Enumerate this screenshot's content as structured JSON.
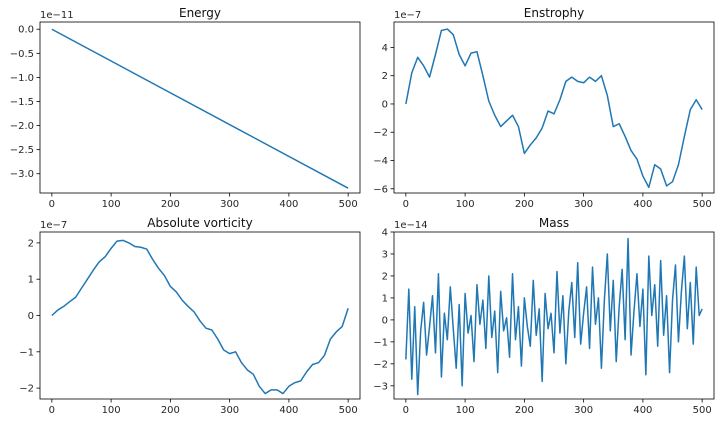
{
  "colors": {
    "line": "#1f77b4",
    "axes": "#000000",
    "background": "#ffffff"
  },
  "chart_data": [
    {
      "type": "line",
      "title": "Energy",
      "scale_label": "1e−11",
      "xlim": [
        -20,
        520
      ],
      "ylim": [
        -3.4,
        0.15
      ],
      "xticks": [
        0,
        100,
        200,
        300,
        400,
        500
      ],
      "yticks": [
        0.0,
        -0.5,
        -1.0,
        -1.5,
        -2.0,
        -2.5,
        -3.0
      ],
      "ytick_labels": [
        "0.0",
        "−0.5",
        "−1.0",
        "−1.5",
        "−2.0",
        "−2.5",
        "−3.0"
      ],
      "grid": false,
      "series": [
        {
          "x": [
            0,
            500
          ],
          "y": [
            0.0,
            -3.3
          ]
        }
      ]
    },
    {
      "type": "line",
      "title": "Enstrophy",
      "scale_label": "1e−7",
      "xlim": [
        -20,
        520
      ],
      "ylim": [
        -6.3,
        5.8
      ],
      "xticks": [
        0,
        100,
        200,
        300,
        400,
        500
      ],
      "yticks": [
        4,
        2,
        0,
        -2,
        -4,
        -6
      ],
      "ytick_labels": [
        "4",
        "2",
        "0",
        "−2",
        "−4",
        "−6"
      ],
      "grid": false,
      "series": [
        {
          "x": [
            0,
            10,
            20,
            30,
            40,
            50,
            60,
            70,
            80,
            90,
            100,
            110,
            120,
            130,
            140,
            150,
            160,
            170,
            180,
            190,
            200,
            210,
            220,
            230,
            240,
            250,
            260,
            270,
            280,
            290,
            300,
            310,
            320,
            330,
            340,
            350,
            360,
            370,
            380,
            390,
            400,
            410,
            420,
            430,
            440,
            450,
            460,
            470,
            480,
            490,
            500
          ],
          "y": [
            0.0,
            2.2,
            3.3,
            2.7,
            1.9,
            3.5,
            5.2,
            5.3,
            4.9,
            3.5,
            2.7,
            3.6,
            3.7,
            2.0,
            0.2,
            -0.8,
            -1.6,
            -1.2,
            -0.8,
            -1.6,
            -3.5,
            -2.9,
            -2.4,
            -1.7,
            -0.5,
            -0.7,
            0.3,
            1.6,
            1.9,
            1.6,
            1.5,
            1.9,
            1.6,
            2.0,
            0.6,
            -1.6,
            -1.4,
            -2.3,
            -3.3,
            -3.9,
            -5.1,
            -5.9,
            -4.3,
            -4.6,
            -5.8,
            -5.5,
            -4.3,
            -2.3,
            -0.4,
            0.3,
            -0.4
          ]
        }
      ]
    },
    {
      "type": "line",
      "title": "Absolute vorticity",
      "scale_label": "1e−7",
      "xlim": [
        -20,
        520
      ],
      "ylim": [
        -2.3,
        2.3
      ],
      "xticks": [
        0,
        100,
        200,
        300,
        400,
        500
      ],
      "yticks": [
        2,
        1,
        0,
        -1,
        -2
      ],
      "ytick_labels": [
        "2",
        "1",
        "0",
        "−1",
        "−2"
      ],
      "grid": false,
      "series": [
        {
          "x": [
            0,
            10,
            20,
            30,
            40,
            50,
            60,
            70,
            80,
            90,
            100,
            110,
            120,
            130,
            140,
            150,
            160,
            170,
            180,
            190,
            200,
            210,
            220,
            230,
            240,
            250,
            260,
            270,
            280,
            290,
            300,
            310,
            320,
            330,
            340,
            350,
            360,
            370,
            380,
            390,
            400,
            410,
            420,
            430,
            440,
            450,
            460,
            470,
            480,
            490,
            500
          ],
          "y": [
            0.0,
            0.15,
            0.25,
            0.38,
            0.5,
            0.75,
            1.0,
            1.25,
            1.48,
            1.62,
            1.85,
            2.05,
            2.07,
            2.0,
            1.9,
            1.88,
            1.83,
            1.55,
            1.3,
            1.1,
            0.8,
            0.65,
            0.42,
            0.25,
            0.1,
            -0.15,
            -0.35,
            -0.4,
            -0.65,
            -0.95,
            -1.05,
            -1.0,
            -1.3,
            -1.5,
            -1.62,
            -1.95,
            -2.15,
            -2.05,
            -2.05,
            -2.15,
            -1.95,
            -1.85,
            -1.8,
            -1.55,
            -1.35,
            -1.3,
            -1.1,
            -0.65,
            -0.45,
            -0.3,
            0.2
          ]
        }
      ]
    },
    {
      "type": "line",
      "title": "Mass",
      "scale_label": "1e−14",
      "xlim": [
        -20,
        520
      ],
      "ylim": [
        -3.6,
        4.0
      ],
      "xticks": [
        0,
        100,
        200,
        300,
        400,
        500
      ],
      "yticks": [
        4,
        3,
        2,
        1,
        0,
        -1,
        -2,
        -3
      ],
      "ytick_labels": [
        "4",
        "3",
        "2",
        "1",
        "0",
        "−1",
        "−2",
        "−3"
      ],
      "grid": false,
      "series": [
        {
          "x": [
            0,
            5,
            10,
            15,
            20,
            25,
            30,
            35,
            40,
            45,
            50,
            55,
            60,
            65,
            70,
            75,
            80,
            85,
            90,
            95,
            100,
            105,
            110,
            115,
            120,
            125,
            130,
            135,
            140,
            145,
            150,
            155,
            160,
            165,
            170,
            175,
            180,
            185,
            190,
            195,
            200,
            205,
            210,
            215,
            220,
            225,
            230,
            235,
            240,
            245,
            250,
            255,
            260,
            265,
            270,
            275,
            280,
            285,
            290,
            295,
            300,
            305,
            310,
            315,
            320,
            325,
            330,
            335,
            340,
            345,
            350,
            355,
            360,
            365,
            370,
            375,
            380,
            385,
            390,
            395,
            400,
            405,
            410,
            415,
            420,
            425,
            430,
            435,
            440,
            445,
            450,
            455,
            460,
            465,
            470,
            475,
            480,
            485,
            490,
            495,
            500
          ],
          "y": [
            -1.8,
            1.4,
            -2.7,
            0.6,
            -3.4,
            -0.5,
            0.8,
            -1.6,
            -0.3,
            1.1,
            -1.5,
            2.1,
            -2.6,
            0.3,
            -0.9,
            1.5,
            -0.4,
            -2.2,
            0.7,
            -3.0,
            1.2,
            -0.6,
            0.2,
            -1.9,
            1.6,
            -0.2,
            0.9,
            -1.3,
            2.0,
            -0.8,
            0.4,
            -2.4,
            1.3,
            -0.5,
            0.1,
            -1.7,
            2.1,
            -0.9,
            0.6,
            -2.1,
            1.0,
            -0.3,
            -1.2,
            1.8,
            -0.7,
            0.5,
            -2.8,
            1.2,
            -0.4,
            0.3,
            -1.5,
            2.2,
            -0.6,
            1.1,
            -2.0,
            0.4,
            1.7,
            -0.8,
            2.6,
            -1.1,
            0.3,
            1.5,
            -1.3,
            2.4,
            -0.2,
            1.0,
            -2.2,
            0.9,
            3.0,
            -0.5,
            1.8,
            -1.9,
            0.6,
            2.3,
            -0.9,
            3.7,
            -1.6,
            0.4,
            2.1,
            -0.3,
            1.4,
            -2.5,
            2.9,
            0.2,
            1.6,
            -1.2,
            2.7,
            -0.7,
            1.1,
            -2.4,
            0.9,
            2.5,
            -1.0,
            1.3,
            2.9,
            -0.4,
            1.7,
            -1.1,
            2.4,
            0.2,
            0.5
          ]
        }
      ]
    }
  ]
}
